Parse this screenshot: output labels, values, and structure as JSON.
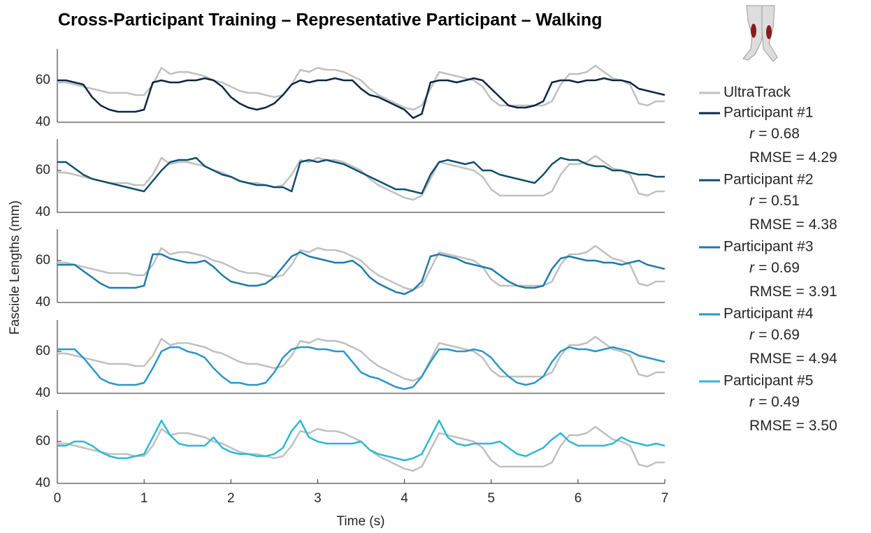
{
  "title": "Cross-Participant Training – Representative Participant – Walking",
  "y_label": "Fascicle Lengths (mm)",
  "x_label": "Time (s)",
  "chart_data": [
    {
      "type": "line",
      "x": [
        0,
        0.1,
        0.2,
        0.3,
        0.4,
        0.5,
        0.6,
        0.7,
        0.8,
        0.9,
        1,
        1.1,
        1.2,
        1.3,
        1.4,
        1.5,
        1.6,
        1.7,
        1.8,
        1.9,
        2,
        2.1,
        2.2,
        2.3,
        2.4,
        2.5,
        2.6,
        2.7,
        2.8,
        2.9,
        3,
        3.1,
        3.2,
        3.3,
        3.4,
        3.5,
        3.6,
        3.7,
        3.8,
        3.9,
        4,
        4.1,
        4.2,
        4.3,
        4.4,
        4.5,
        4.6,
        4.7,
        4.8,
        4.9,
        5,
        5.1,
        5.2,
        5.3,
        5.4,
        5.5,
        5.6,
        5.7,
        5.8,
        5.9,
        6,
        6.1,
        6.2,
        6.3,
        6.4,
        6.5,
        6.6,
        6.7,
        6.8,
        6.9,
        7
      ],
      "series": [
        {
          "name": "UltraTrack",
          "color": "#c0c0c0",
          "values": [
            59,
            59,
            58,
            57,
            56,
            55,
            54,
            54,
            54,
            53,
            53,
            58,
            66,
            63,
            64,
            64,
            63,
            62,
            60,
            59,
            57,
            55,
            54,
            54,
            53,
            52,
            53,
            58,
            65,
            64,
            66,
            65,
            65,
            64,
            62,
            60,
            56,
            53,
            51,
            49,
            47,
            46,
            48,
            56,
            64,
            63,
            62,
            61,
            60,
            57,
            51,
            48,
            48,
            48,
            48,
            48,
            48,
            50,
            58,
            63,
            63,
            64,
            67,
            64,
            61,
            60,
            58,
            49,
            48,
            50,
            50
          ]
        },
        {
          "name": "Participant #1",
          "color": "#0b2545",
          "values": [
            60,
            60,
            59,
            58,
            52,
            48,
            46,
            45,
            45,
            45,
            46,
            59,
            60,
            59,
            59,
            60,
            60,
            61,
            60,
            57,
            52,
            49,
            47,
            46,
            47,
            49,
            53,
            58,
            60,
            59,
            60,
            60,
            61,
            60,
            60,
            56,
            53,
            52,
            50,
            48,
            46,
            42,
            44,
            59,
            60,
            60,
            59,
            60,
            61,
            60,
            56,
            52,
            48,
            47,
            47,
            48,
            50,
            59,
            60,
            60,
            59,
            60,
            60,
            61,
            60,
            60,
            59,
            56,
            55,
            54,
            53
          ]
        }
      ],
      "xlim": [
        0,
        7
      ],
      "ylim": [
        40,
        75
      ],
      "yticks": [
        40,
        60
      ],
      "stats": [
        {
          "label": "r =",
          "value": 0.68
        },
        {
          "label": "RMSE =",
          "value": 4.29
        }
      ]
    },
    {
      "type": "line",
      "x": [
        0,
        0.1,
        0.2,
        0.3,
        0.4,
        0.5,
        0.6,
        0.7,
        0.8,
        0.9,
        1,
        1.1,
        1.2,
        1.3,
        1.4,
        1.5,
        1.6,
        1.7,
        1.8,
        1.9,
        2,
        2.1,
        2.2,
        2.3,
        2.4,
        2.5,
        2.6,
        2.7,
        2.8,
        2.9,
        3,
        3.1,
        3.2,
        3.3,
        3.4,
        3.5,
        3.6,
        3.7,
        3.8,
        3.9,
        4,
        4.1,
        4.2,
        4.3,
        4.4,
        4.5,
        4.6,
        4.7,
        4.8,
        4.9,
        5,
        5.1,
        5.2,
        5.3,
        5.4,
        5.5,
        5.6,
        5.7,
        5.8,
        5.9,
        6,
        6.1,
        6.2,
        6.3,
        6.4,
        6.5,
        6.6,
        6.7,
        6.8,
        6.9,
        7
      ],
      "series": [
        {
          "color": "#c0c0c0",
          "values": [
            59,
            59,
            58,
            57,
            56,
            55,
            54,
            54,
            54,
            53,
            53,
            58,
            66,
            63,
            64,
            64,
            63,
            62,
            60,
            59,
            57,
            55,
            54,
            54,
            53,
            52,
            53,
            58,
            65,
            64,
            66,
            65,
            65,
            64,
            62,
            60,
            56,
            53,
            51,
            49,
            47,
            46,
            48,
            56,
            64,
            63,
            62,
            61,
            60,
            57,
            51,
            48,
            48,
            48,
            48,
            48,
            48,
            50,
            58,
            63,
            63,
            64,
            67,
            64,
            61,
            60,
            58,
            49,
            48,
            50,
            50
          ]
        },
        {
          "name": "Participant #2",
          "color": "#0d4f6e",
          "values": [
            64,
            64,
            61,
            58,
            56,
            55,
            54,
            53,
            52,
            51,
            50,
            55,
            60,
            64,
            65,
            65,
            66,
            62,
            60,
            58,
            57,
            55,
            54,
            53,
            53,
            52,
            52,
            50,
            64,
            65,
            64,
            65,
            64,
            63,
            61,
            59,
            57,
            55,
            53,
            51,
            51,
            50,
            49,
            58,
            64,
            65,
            64,
            63,
            64,
            60,
            60,
            58,
            57,
            56,
            55,
            54,
            58,
            63,
            66,
            65,
            65,
            63,
            62,
            62,
            60,
            60,
            59,
            58,
            58,
            57,
            57
          ]
        }
      ],
      "xlim": [
        0,
        7
      ],
      "ylim": [
        40,
        75
      ],
      "yticks": [
        40,
        60
      ],
      "stats": [
        {
          "label": "r =",
          "value": 0.51
        },
        {
          "label": "RMSE =",
          "value": 4.38
        }
      ]
    },
    {
      "type": "line",
      "x": [
        0,
        0.1,
        0.2,
        0.3,
        0.4,
        0.5,
        0.6,
        0.7,
        0.8,
        0.9,
        1,
        1.1,
        1.2,
        1.3,
        1.4,
        1.5,
        1.6,
        1.7,
        1.8,
        1.9,
        2,
        2.1,
        2.2,
        2.3,
        2.4,
        2.5,
        2.6,
        2.7,
        2.8,
        2.9,
        3,
        3.1,
        3.2,
        3.3,
        3.4,
        3.5,
        3.6,
        3.7,
        3.8,
        3.9,
        4,
        4.1,
        4.2,
        4.3,
        4.4,
        4.5,
        4.6,
        4.7,
        4.8,
        4.9,
        5,
        5.1,
        5.2,
        5.3,
        5.4,
        5.5,
        5.6,
        5.7,
        5.8,
        5.9,
        6,
        6.1,
        6.2,
        6.3,
        6.4,
        6.5,
        6.6,
        6.7,
        6.8,
        6.9,
        7
      ],
      "series": [
        {
          "color": "#c0c0c0",
          "values": [
            59,
            59,
            58,
            57,
            56,
            55,
            54,
            54,
            54,
            53,
            53,
            58,
            66,
            63,
            64,
            64,
            63,
            62,
            60,
            59,
            57,
            55,
            54,
            54,
            53,
            52,
            53,
            58,
            65,
            64,
            66,
            65,
            65,
            64,
            62,
            60,
            56,
            53,
            51,
            49,
            47,
            46,
            48,
            56,
            64,
            63,
            62,
            61,
            60,
            57,
            51,
            48,
            48,
            48,
            48,
            48,
            48,
            50,
            58,
            63,
            63,
            64,
            67,
            64,
            61,
            60,
            58,
            49,
            48,
            50,
            50
          ]
        },
        {
          "name": "Participant #3",
          "color": "#1f7aa8",
          "values": [
            58,
            58,
            58,
            55,
            52,
            49,
            47,
            47,
            47,
            47,
            48,
            63,
            63,
            61,
            60,
            59,
            59,
            60,
            57,
            53,
            50,
            49,
            48,
            48,
            49,
            52,
            57,
            62,
            64,
            62,
            61,
            60,
            59,
            59,
            60,
            57,
            52,
            49,
            47,
            45,
            44,
            46,
            50,
            62,
            63,
            62,
            61,
            59,
            58,
            57,
            56,
            53,
            50,
            48,
            47,
            47,
            48,
            56,
            61,
            62,
            61,
            60,
            60,
            59,
            59,
            58,
            59,
            60,
            58,
            57,
            56
          ]
        }
      ],
      "xlim": [
        0,
        7
      ],
      "ylim": [
        40,
        75
      ],
      "yticks": [
        40,
        60
      ],
      "stats": [
        {
          "label": "r =",
          "value": 0.69
        },
        {
          "label": "RMSE =",
          "value": 3.91
        }
      ]
    },
    {
      "type": "line",
      "x": [
        0,
        0.1,
        0.2,
        0.3,
        0.4,
        0.5,
        0.6,
        0.7,
        0.8,
        0.9,
        1,
        1.1,
        1.2,
        1.3,
        1.4,
        1.5,
        1.6,
        1.7,
        1.8,
        1.9,
        2,
        2.1,
        2.2,
        2.3,
        2.4,
        2.5,
        2.6,
        2.7,
        2.8,
        2.9,
        3,
        3.1,
        3.2,
        3.3,
        3.4,
        3.5,
        3.6,
        3.7,
        3.8,
        3.9,
        4,
        4.1,
        4.2,
        4.3,
        4.4,
        4.5,
        4.6,
        4.7,
        4.8,
        4.9,
        5,
        5.1,
        5.2,
        5.3,
        5.4,
        5.5,
        5.6,
        5.7,
        5.8,
        5.9,
        6,
        6.1,
        6.2,
        6.3,
        6.4,
        6.5,
        6.6,
        6.7,
        6.8,
        6.9,
        7
      ],
      "series": [
        {
          "color": "#c0c0c0",
          "values": [
            59,
            59,
            58,
            57,
            56,
            55,
            54,
            54,
            54,
            53,
            53,
            58,
            66,
            63,
            64,
            64,
            63,
            62,
            60,
            59,
            57,
            55,
            54,
            54,
            53,
            52,
            53,
            58,
            65,
            64,
            66,
            65,
            65,
            64,
            62,
            60,
            56,
            53,
            51,
            49,
            47,
            46,
            48,
            56,
            64,
            63,
            62,
            61,
            60,
            57,
            51,
            48,
            48,
            48,
            48,
            48,
            48,
            50,
            58,
            63,
            63,
            64,
            67,
            64,
            61,
            60,
            58,
            49,
            48,
            50,
            50
          ]
        },
        {
          "name": "Participant #4",
          "color": "#2a96c8",
          "values": [
            61,
            61,
            61,
            57,
            52,
            47,
            45,
            44,
            44,
            44,
            45,
            52,
            60,
            62,
            62,
            60,
            59,
            57,
            52,
            48,
            45,
            45,
            44,
            44,
            45,
            50,
            57,
            61,
            62,
            62,
            61,
            61,
            60,
            60,
            55,
            50,
            48,
            47,
            45,
            43,
            42,
            43,
            48,
            55,
            61,
            61,
            60,
            60,
            61,
            60,
            57,
            52,
            48,
            45,
            44,
            45,
            48,
            55,
            60,
            62,
            61,
            61,
            60,
            61,
            62,
            61,
            60,
            58,
            57,
            56,
            55
          ]
        }
      ],
      "xlim": [
        0,
        7
      ],
      "ylim": [
        40,
        75
      ],
      "yticks": [
        40,
        60
      ],
      "stats": [
        {
          "label": "r =",
          "value": 0.69
        },
        {
          "label": "RMSE =",
          "value": 4.94
        }
      ]
    },
    {
      "type": "line",
      "x": [
        0,
        0.1,
        0.2,
        0.3,
        0.4,
        0.5,
        0.6,
        0.7,
        0.8,
        0.9,
        1,
        1.1,
        1.2,
        1.3,
        1.4,
        1.5,
        1.6,
        1.7,
        1.8,
        1.9,
        2,
        2.1,
        2.2,
        2.3,
        2.4,
        2.5,
        2.6,
        2.7,
        2.8,
        2.9,
        3,
        3.1,
        3.2,
        3.3,
        3.4,
        3.5,
        3.6,
        3.7,
        3.8,
        3.9,
        4,
        4.1,
        4.2,
        4.3,
        4.4,
        4.5,
        4.6,
        4.7,
        4.8,
        4.9,
        5,
        5.1,
        5.2,
        5.3,
        5.4,
        5.5,
        5.6,
        5.7,
        5.8,
        5.9,
        6,
        6.1,
        6.2,
        6.3,
        6.4,
        6.5,
        6.6,
        6.7,
        6.8,
        6.9,
        7
      ],
      "series": [
        {
          "color": "#c0c0c0",
          "values": [
            59,
            59,
            58,
            57,
            56,
            55,
            54,
            54,
            54,
            53,
            53,
            58,
            66,
            63,
            64,
            64,
            63,
            62,
            60,
            59,
            57,
            55,
            54,
            54,
            53,
            52,
            53,
            58,
            65,
            64,
            66,
            65,
            65,
            64,
            62,
            60,
            56,
            53,
            51,
            49,
            47,
            46,
            48,
            56,
            64,
            63,
            62,
            61,
            60,
            57,
            51,
            48,
            48,
            48,
            48,
            48,
            48,
            50,
            58,
            63,
            63,
            64,
            67,
            64,
            61,
            60,
            58,
            49,
            48,
            50,
            50
          ]
        },
        {
          "name": "Participant #5",
          "color": "#2cb8d4",
          "values": [
            58,
            58,
            60,
            60,
            58,
            55,
            53,
            52,
            52,
            53,
            54,
            62,
            70,
            63,
            59,
            58,
            58,
            58,
            62,
            57,
            55,
            54,
            54,
            53,
            53,
            54,
            57,
            65,
            70,
            62,
            60,
            59,
            59,
            59,
            59,
            60,
            56,
            54,
            53,
            52,
            51,
            52,
            54,
            62,
            70,
            62,
            59,
            58,
            59,
            59,
            59,
            60,
            57,
            54,
            53,
            55,
            57,
            61,
            64,
            60,
            58,
            58,
            58,
            58,
            59,
            62,
            60,
            59,
            58,
            59,
            58
          ]
        }
      ],
      "xlim": [
        0,
        7
      ],
      "ylim": [
        40,
        75
      ],
      "yticks": [
        40,
        60
      ],
      "xticks": [
        0,
        1,
        2,
        3,
        4,
        5,
        6,
        7
      ],
      "stats": [
        {
          "label": "r =",
          "value": 0.49
        },
        {
          "label": "RMSE =",
          "value": {
            "value": 3.5,
            "label": "3.50"
          }
        }
      ]
    }
  ]
}
